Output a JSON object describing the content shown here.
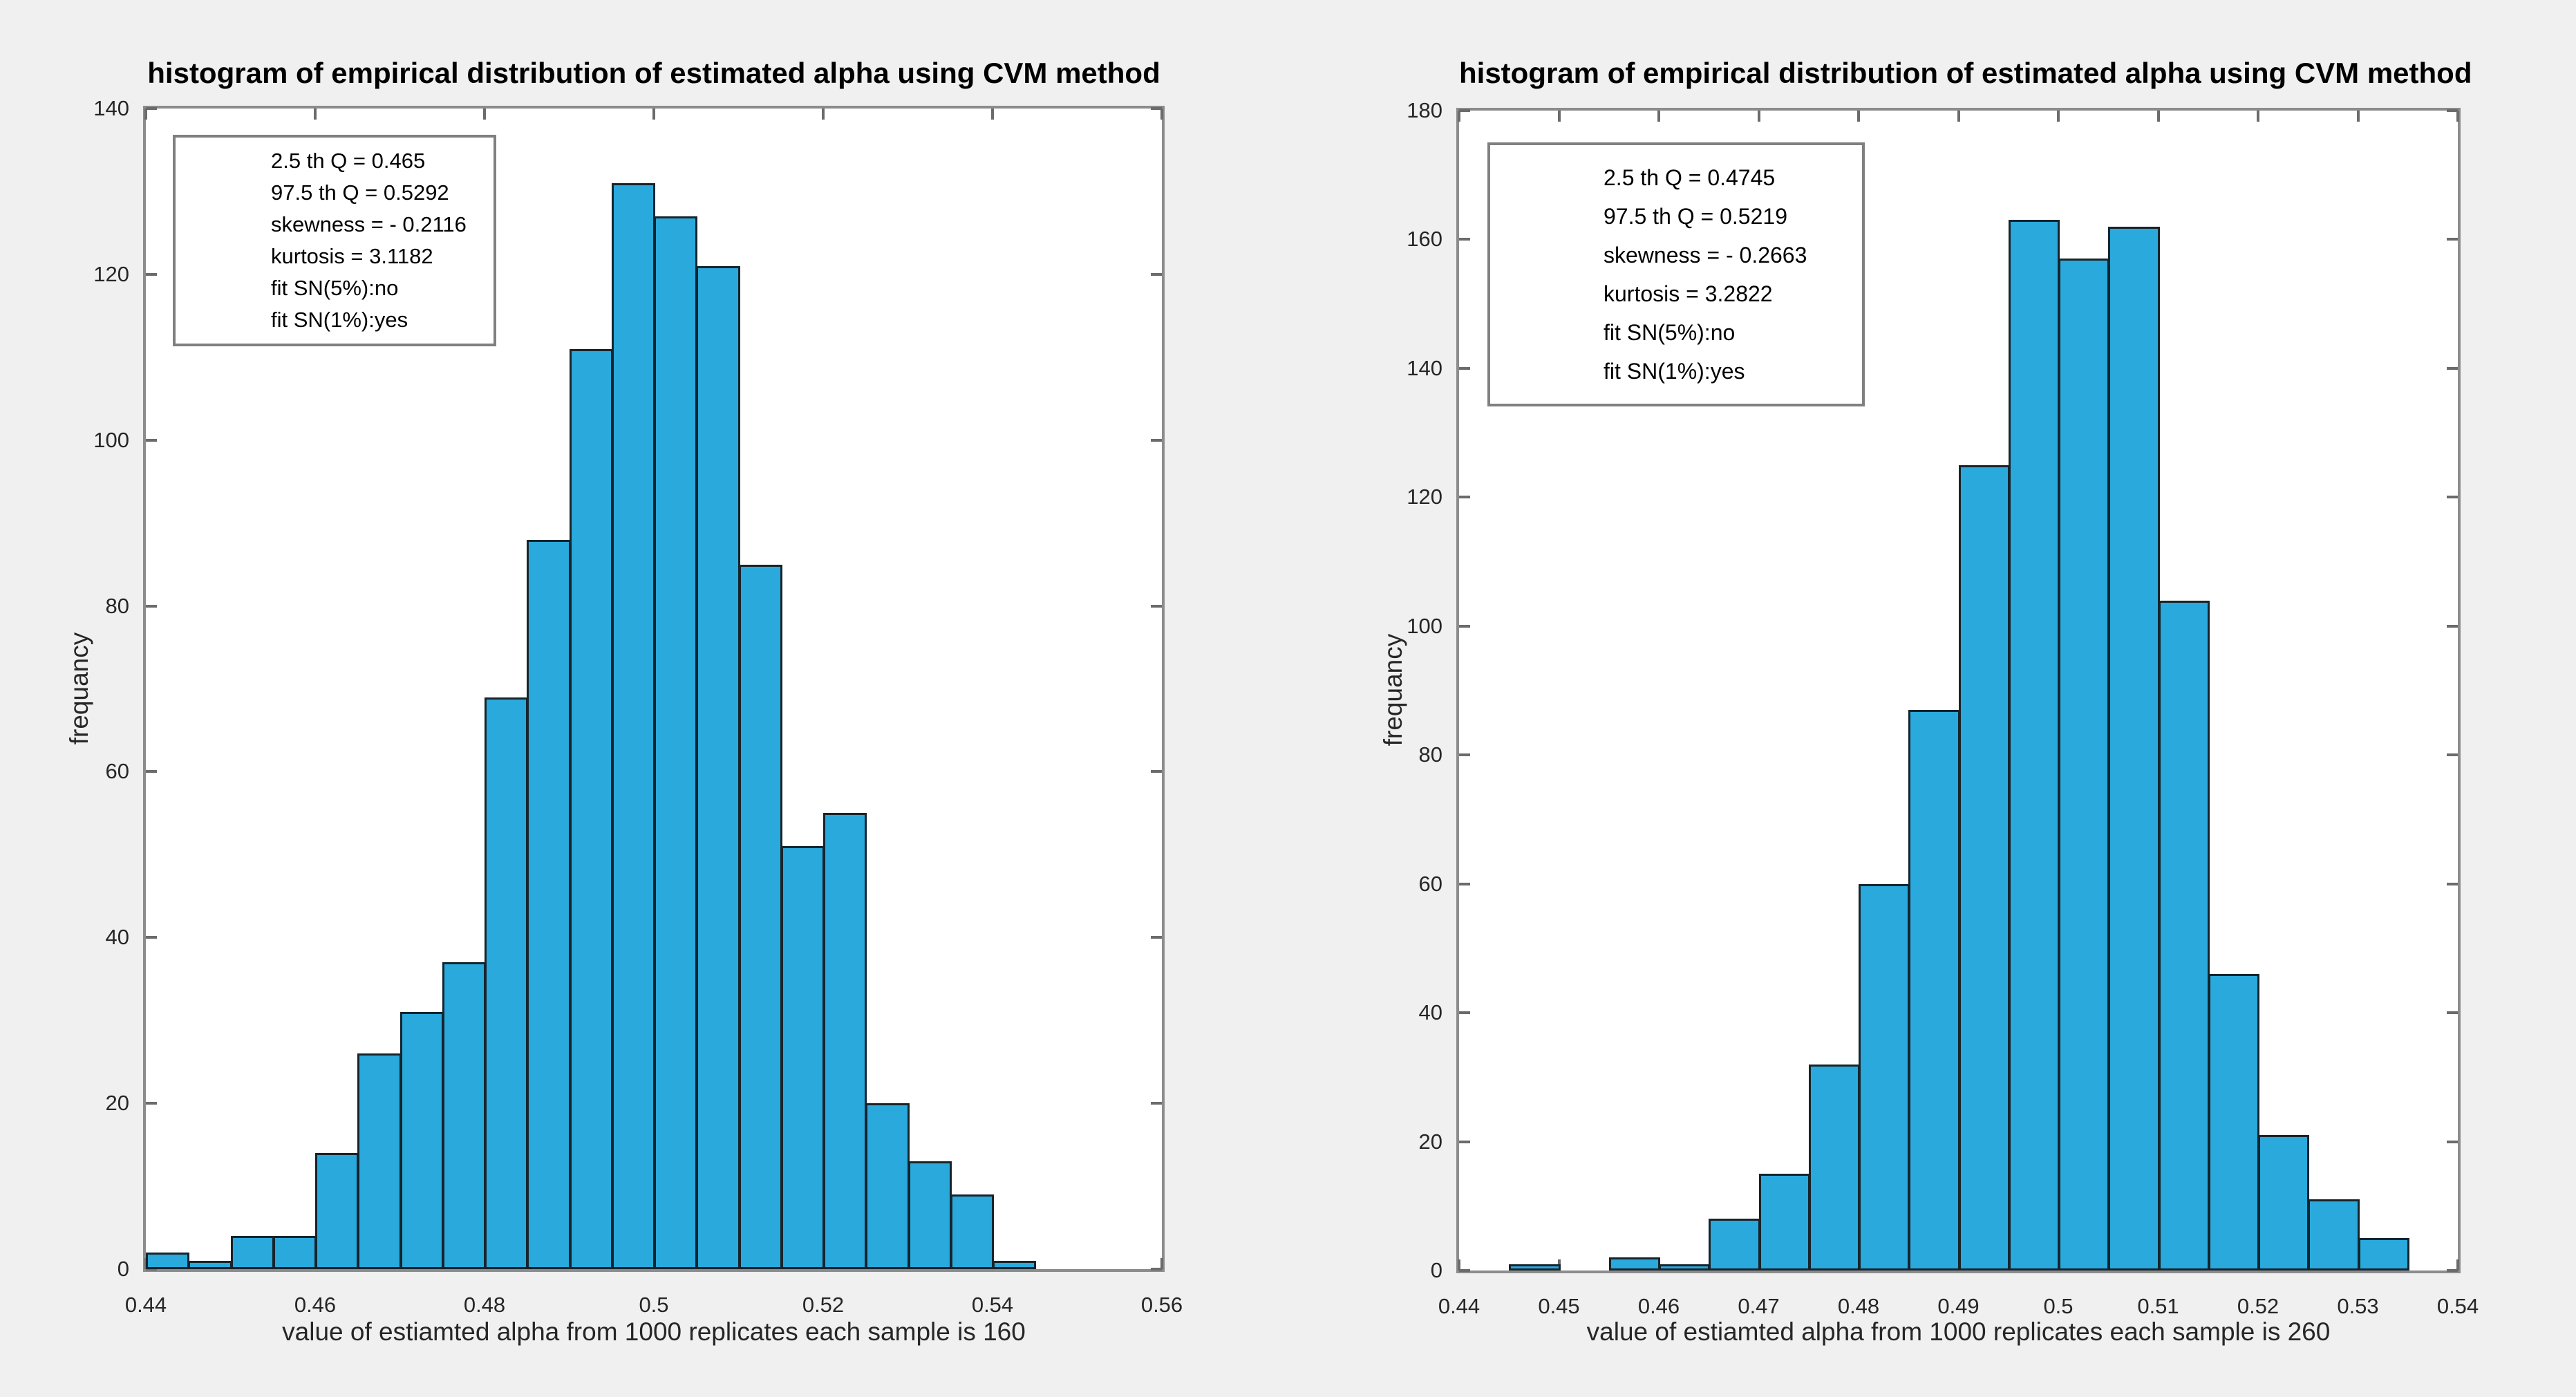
{
  "figure": {
    "background": "#f0f0f0"
  },
  "colors": {
    "bar_fill": "#2aa9dc",
    "bar_edge": "#16242c",
    "frame": "#8c8c8c",
    "tick_mark": "#6b6b6b",
    "tick_text": "#262626",
    "title_text": "#000000",
    "annotation_border": "#808080",
    "plot_background": "#ffffff"
  },
  "chart_data": [
    {
      "type": "bar",
      "title": "histogram of empirical distribution of estimated alpha using CVM method",
      "xlabel": "value of estiamted alpha from 1000 replicates each sample is 160",
      "ylabel": "frequancy",
      "bins": {
        "start": 0.44,
        "width": 0.005
      },
      "values": [
        2,
        1,
        4,
        4,
        14,
        26,
        31,
        37,
        69,
        88,
        111,
        131,
        127,
        121,
        85,
        51,
        55,
        20,
        13,
        9,
        1
      ],
      "xlim": [
        0.44,
        0.56
      ],
      "ylim": [
        0,
        140
      ],
      "xticks": [
        0.44,
        0.46,
        0.48,
        0.5,
        0.52,
        0.54,
        0.56
      ],
      "yticks": [
        0,
        20,
        40,
        60,
        80,
        100,
        120,
        140
      ],
      "grid": false,
      "legend": null,
      "annotation": {
        "lines": [
          "2.5 th Q = 0.465",
          "97.5 th Q = 0.5292",
          "skewness = - 0.2116",
          "kurtosis = 3.1182",
          "fit SN(5%):no",
          "fit SN(1%):yes"
        ]
      }
    },
    {
      "type": "bar",
      "title": "histogram of empirical distribution of estimated alpha using CVM method",
      "xlabel": "value of estiamted alpha from 1000 replicates each sample is 260",
      "ylabel": "frequancy",
      "bins": {
        "start": 0.44,
        "width": 0.005
      },
      "values": [
        0,
        1,
        0,
        2,
        1,
        8,
        15,
        32,
        60,
        87,
        125,
        163,
        157,
        162,
        104,
        46,
        21,
        11,
        5
      ],
      "xlim": [
        0.44,
        0.54
      ],
      "ylim": [
        0,
        180
      ],
      "xticks": [
        0.44,
        0.45,
        0.46,
        0.47,
        0.48,
        0.49,
        0.5,
        0.51,
        0.52,
        0.53,
        0.54
      ],
      "yticks": [
        0,
        20,
        40,
        60,
        80,
        100,
        120,
        140,
        160,
        180
      ],
      "grid": false,
      "legend": null,
      "annotation": {
        "lines": [
          "2.5 th Q = 0.4745",
          "97.5 th Q = 0.5219",
          "skewness = - 0.2663",
          "kurtosis = 3.2822",
          "fit SN(5%):no",
          "fit SN(1%):yes"
        ]
      }
    }
  ]
}
